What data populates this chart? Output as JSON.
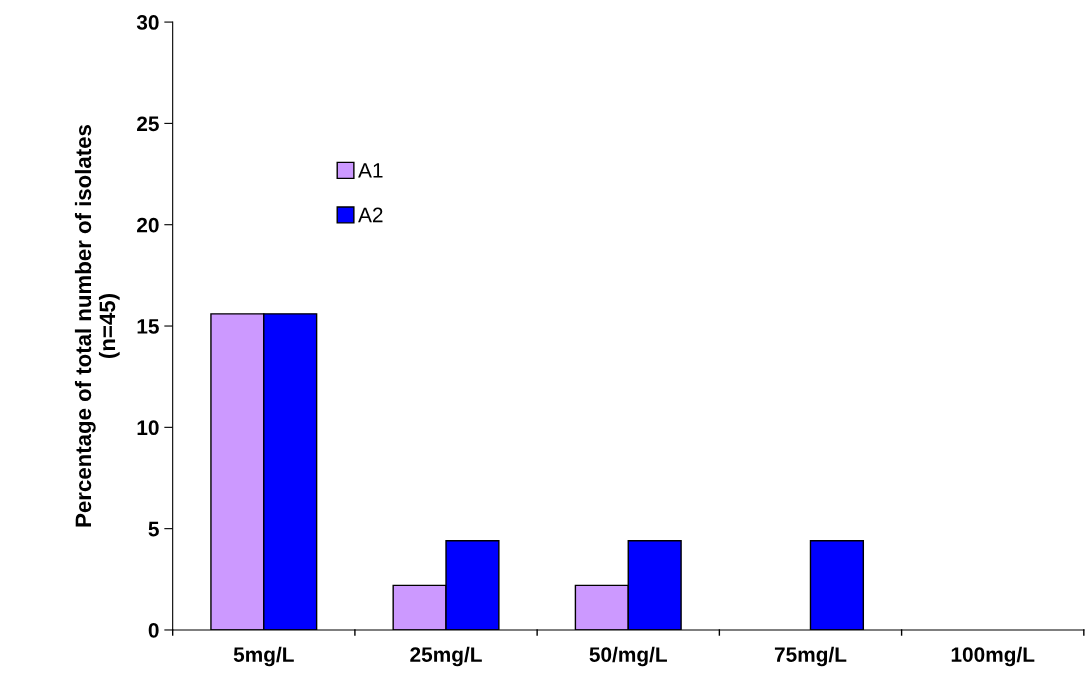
{
  "chart_data": {
    "type": "bar",
    "ylabel": "Percentage of total number of isolates\n(n=45)",
    "categories": [
      "5mg/L",
      "25mg/L",
      "50/mg/L",
      "75mg/L",
      "100mg/L"
    ],
    "series": [
      {
        "name": "A1",
        "color": "#cc99ff",
        "values": [
          15.6,
          2.2,
          2.2,
          0,
          0
        ]
      },
      {
        "name": "A2",
        "color": "#0000ff",
        "values": [
          15.6,
          4.4,
          4.4,
          4.4,
          0
        ]
      }
    ],
    "ylim": [
      0,
      30
    ],
    "yticks": [
      0,
      5,
      10,
      15,
      20,
      25,
      30
    ],
    "grid": false,
    "legend": "top left"
  }
}
